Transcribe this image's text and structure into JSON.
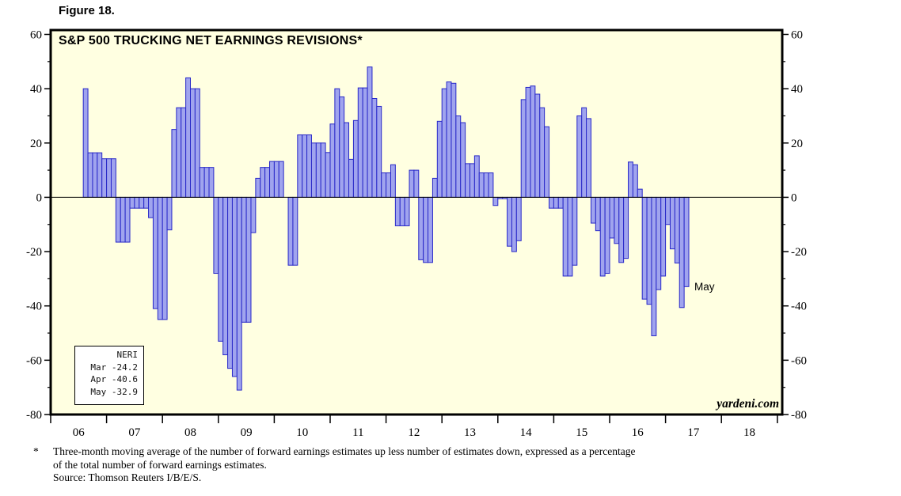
{
  "figure_label": "Figure 18.",
  "chart_title": "S&P 500 TRUCKING NET EARNINGS REVISIONS*",
  "watermark": "yardeni.com",
  "last_point_label": "May",
  "legend_box": {
    "header": "NERI",
    "rows": [
      "Mar -24.2",
      "Apr -40.6",
      "May -32.9"
    ]
  },
  "footnote": {
    "marker": "*",
    "line1": "Three-month moving average of the number of forward earnings estimates up less number of estimates down, expressed as a percentage",
    "line2": "of the total number of forward earnings estimates.",
    "source": "Source: Thomson Reuters I/B/E/S."
  },
  "colors": {
    "plot_bg": "#ffffe1",
    "bar_fill": "#a0a4ee",
    "bar_border": "#2828c8",
    "frame": "#000000"
  },
  "chart_data": {
    "type": "bar",
    "title": "S&P 500 TRUCKING NET EARNINGS REVISIONS*",
    "series_name": "NERI",
    "x_frequency": "monthly",
    "x_start": "2006-08",
    "x_end": "2017-05",
    "ylim": [
      -80,
      60
    ],
    "y_major_ticks": [
      60,
      40,
      20,
      0,
      -20,
      -40,
      -60,
      -80
    ],
    "y_minor_ticks": [
      50,
      30,
      10,
      -10,
      -30,
      -50,
      -70
    ],
    "x_year_labels": [
      "06",
      "07",
      "08",
      "09",
      "10",
      "11",
      "12",
      "13",
      "14",
      "15",
      "16",
      "17",
      "18"
    ],
    "grid": "none, zero line only",
    "legend_position": "bottom-left box",
    "values": [
      40,
      16.4,
      16.4,
      16.4,
      14.2,
      14.2,
      14.2,
      -16.5,
      -16.5,
      -16.5,
      -4,
      -4,
      -4,
      -4,
      -7.5,
      -41,
      -45,
      -45,
      -12,
      25,
      33,
      33,
      44,
      40,
      40,
      11,
      11,
      11,
      -28,
      -53,
      -58,
      -63,
      -66,
      -71,
      -46,
      -46,
      -13,
      7,
      11,
      11,
      13.2,
      13.2,
      13.2,
      0,
      -25,
      -25,
      23,
      23,
      23,
      20,
      20,
      20,
      16.5,
      27,
      40,
      37,
      27.5,
      14,
      28.3,
      40.3,
      40.3,
      48,
      36.4,
      33.5,
      9,
      9,
      12,
      -10.5,
      -10.5,
      -10.5,
      10,
      10,
      -23,
      -24,
      -24,
      7,
      28,
      40,
      42.5,
      42,
      30,
      27.5,
      12.4,
      12.4,
      15.3,
      9,
      9,
      9,
      -3,
      -0.5,
      -0.5,
      -18,
      -20,
      -16,
      36,
      40.5,
      41,
      38,
      33,
      26,
      -4,
      -4,
      -4,
      -29,
      -29,
      -25,
      30,
      33,
      29,
      -9.5,
      -12.3,
      -29,
      -28,
      -15,
      -17,
      -24,
      -22.5,
      13,
      12,
      3,
      -37.5,
      -39.4,
      -51,
      -34,
      -29,
      -10,
      -19,
      -24.2,
      -40.6,
      -32.9
    ]
  }
}
